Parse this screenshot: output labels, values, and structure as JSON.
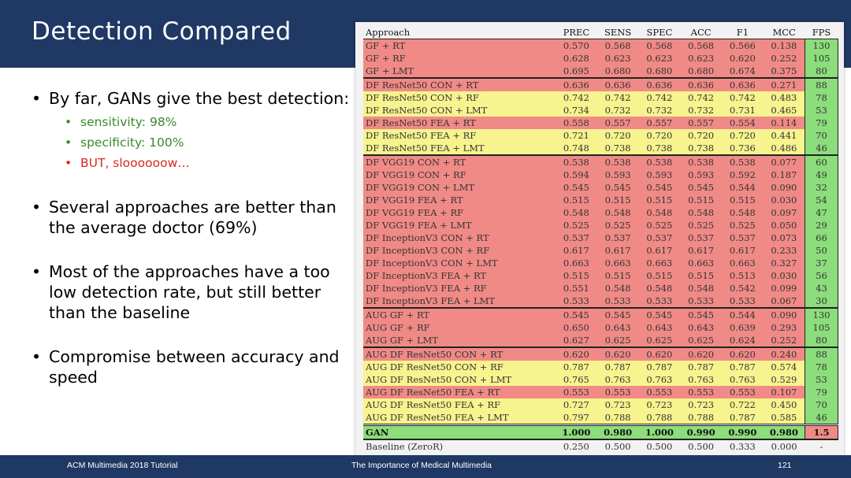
{
  "slide": {
    "title": "Detection Compared",
    "footer_left": "ACM Multimedia 2018 Tutorial",
    "footer_mid": "The Importance of Medical Multimedia",
    "footer_right": "121"
  },
  "bullets": {
    "b1": "By far, GANs give the best detection:",
    "b1_sub1": "sensitivity: 98%",
    "b1_sub2": "specificity: 100%",
    "b1_sub3": "BUT, sloooooow…",
    "b2": "Several approaches are better than the average doctor (69%)",
    "b3": "Most of the approaches have a too low detection rate, but still better than the baseline",
    "b4": "Compromise between accuracy and speed"
  },
  "table": {
    "headers": [
      "Approach",
      "PREC",
      "SENS",
      "SPEC",
      "ACC",
      "F1",
      "MCC",
      "FPS"
    ],
    "rows": [
      {
        "c": [
          "GF + RT",
          "0.570",
          "0.568",
          "0.568",
          "0.568",
          "0.566",
          "0.138",
          "130"
        ],
        "color": "red",
        "group": false
      },
      {
        "c": [
          "GF + RF",
          "0.628",
          "0.623",
          "0.623",
          "0.623",
          "0.620",
          "0.252",
          "105"
        ],
        "color": "red",
        "group": false
      },
      {
        "c": [
          "GF + LMT",
          "0.695",
          "0.680",
          "0.680",
          "0.680",
          "0.674",
          "0.375",
          "80"
        ],
        "color": "red",
        "group": false
      },
      {
        "c": [
          "DF ResNet50 CON + RT",
          "0.636",
          "0.636",
          "0.636",
          "0.636",
          "0.636",
          "0.271",
          "88"
        ],
        "color": "red",
        "group": true
      },
      {
        "c": [
          "DF ResNet50 CON + RF",
          "0.742",
          "0.742",
          "0.742",
          "0.742",
          "0.742",
          "0.483",
          "78"
        ],
        "color": "yellow",
        "group": false
      },
      {
        "c": [
          "DF ResNet50 CON + LMT",
          "0.734",
          "0.732",
          "0.732",
          "0.732",
          "0.731",
          "0.465",
          "53"
        ],
        "color": "yellow",
        "group": false
      },
      {
        "c": [
          "DF ResNet50 FEA + RT",
          "0.558",
          "0.557",
          "0.557",
          "0.557",
          "0.554",
          "0.114",
          "79"
        ],
        "color": "red",
        "group": false
      },
      {
        "c": [
          "DF ResNet50 FEA + RF",
          "0.721",
          "0.720",
          "0.720",
          "0.720",
          "0.720",
          "0.441",
          "70"
        ],
        "color": "yellow",
        "group": false
      },
      {
        "c": [
          "DF ResNet50 FEA + LMT",
          "0.748",
          "0.738",
          "0.738",
          "0.738",
          "0.736",
          "0.486",
          "46"
        ],
        "color": "yellow",
        "group": false
      },
      {
        "c": [
          "DF VGG19 CON + RT",
          "0.538",
          "0.538",
          "0.538",
          "0.538",
          "0.538",
          "0.077",
          "60"
        ],
        "color": "red",
        "group": true
      },
      {
        "c": [
          "DF VGG19 CON + RF",
          "0.594",
          "0.593",
          "0.593",
          "0.593",
          "0.592",
          "0.187",
          "49"
        ],
        "color": "red",
        "group": false
      },
      {
        "c": [
          "DF VGG19 CON + LMT",
          "0.545",
          "0.545",
          "0.545",
          "0.545",
          "0.544",
          "0.090",
          "32"
        ],
        "color": "red",
        "group": false
      },
      {
        "c": [
          "DF VGG19 FEA + RT",
          "0.515",
          "0.515",
          "0.515",
          "0.515",
          "0.515",
          "0.030",
          "54"
        ],
        "color": "red",
        "group": false
      },
      {
        "c": [
          "DF VGG19 FEA + RF",
          "0.548",
          "0.548",
          "0.548",
          "0.548",
          "0.548",
          "0.097",
          "47"
        ],
        "color": "red",
        "group": false
      },
      {
        "c": [
          "DF VGG19 FEA + LMT",
          "0.525",
          "0.525",
          "0.525",
          "0.525",
          "0.525",
          "0.050",
          "29"
        ],
        "color": "red",
        "group": false
      },
      {
        "c": [
          "DF InceptionV3 CON + RT",
          "0.537",
          "0.537",
          "0.537",
          "0.537",
          "0.537",
          "0.073",
          "66"
        ],
        "color": "red",
        "group": false
      },
      {
        "c": [
          "DF InceptionV3 CON + RF",
          "0.617",
          "0.617",
          "0.617",
          "0.617",
          "0.617",
          "0.233",
          "50"
        ],
        "color": "red",
        "group": false
      },
      {
        "c": [
          "DF InceptionV3 CON + LMT",
          "0.663",
          "0.663",
          "0.663",
          "0.663",
          "0.663",
          "0.327",
          "37"
        ],
        "color": "red",
        "group": false
      },
      {
        "c": [
          "DF InceptionV3 FEA + RT",
          "0.515",
          "0.515",
          "0.515",
          "0.515",
          "0.513",
          "0.030",
          "56"
        ],
        "color": "red",
        "group": false
      },
      {
        "c": [
          "DF InceptionV3 FEA + RF",
          "0.551",
          "0.548",
          "0.548",
          "0.548",
          "0.542",
          "0.099",
          "43"
        ],
        "color": "red",
        "group": false
      },
      {
        "c": [
          "DF InceptionV3 FEA + LMT",
          "0.533",
          "0.533",
          "0.533",
          "0.533",
          "0.533",
          "0.067",
          "30"
        ],
        "color": "red",
        "group": false
      },
      {
        "c": [
          "AUG GF + RT",
          "0.545",
          "0.545",
          "0.545",
          "0.545",
          "0.544",
          "0.090",
          "130"
        ],
        "color": "red",
        "group": true
      },
      {
        "c": [
          "AUG GF + RF",
          "0.650",
          "0.643",
          "0.643",
          "0.643",
          "0.639",
          "0.293",
          "105"
        ],
        "color": "red",
        "group": false
      },
      {
        "c": [
          "AUG GF + LMT",
          "0.627",
          "0.625",
          "0.625",
          "0.625",
          "0.624",
          "0.252",
          "80"
        ],
        "color": "red",
        "group": false
      },
      {
        "c": [
          "AUG DF ResNet50 CON + RT",
          "0.620",
          "0.620",
          "0.620",
          "0.620",
          "0.620",
          "0.240",
          "88"
        ],
        "color": "red",
        "group": true
      },
      {
        "c": [
          "AUG DF ResNet50 CON + RF",
          "0.787",
          "0.787",
          "0.787",
          "0.787",
          "0.787",
          "0.574",
          "78"
        ],
        "color": "yellow",
        "group": false
      },
      {
        "c": [
          "AUG DF ResNet50 CON + LMT",
          "0.765",
          "0.763",
          "0.763",
          "0.763",
          "0.763",
          "0.529",
          "53"
        ],
        "color": "yellow",
        "group": false
      },
      {
        "c": [
          "AUG DF ResNet50 FEA + RT",
          "0.553",
          "0.553",
          "0.553",
          "0.553",
          "0.553",
          "0.107",
          "79"
        ],
        "color": "red",
        "group": false
      },
      {
        "c": [
          "AUG DF ResNet50 FEA + RF",
          "0.727",
          "0.723",
          "0.723",
          "0.723",
          "0.722",
          "0.450",
          "70"
        ],
        "color": "yellow",
        "group": false
      },
      {
        "c": [
          "AUG DF ResNet50 FEA + LMT",
          "0.797",
          "0.788",
          "0.788",
          "0.788",
          "0.787",
          "0.585",
          "46"
        ],
        "color": "yellow",
        "group": false
      }
    ],
    "gan_row": [
      "GAN",
      "1.000",
      "0.980",
      "1.000",
      "0.990",
      "0.990",
      "0.980",
      "1.5"
    ],
    "baseline_row": [
      "Baseline (ZeroR)",
      "0.250",
      "0.500",
      "0.500",
      "0.500",
      "0.333",
      "0.000",
      "-"
    ]
  },
  "colors": {
    "header_bar": "#1f3864",
    "red_row": "#f08a86",
    "yellow_row": "#f7f38e",
    "green_row": "#8cdd7c",
    "bullet_green": "#3a8a2a",
    "bullet_red": "#d9281f"
  }
}
